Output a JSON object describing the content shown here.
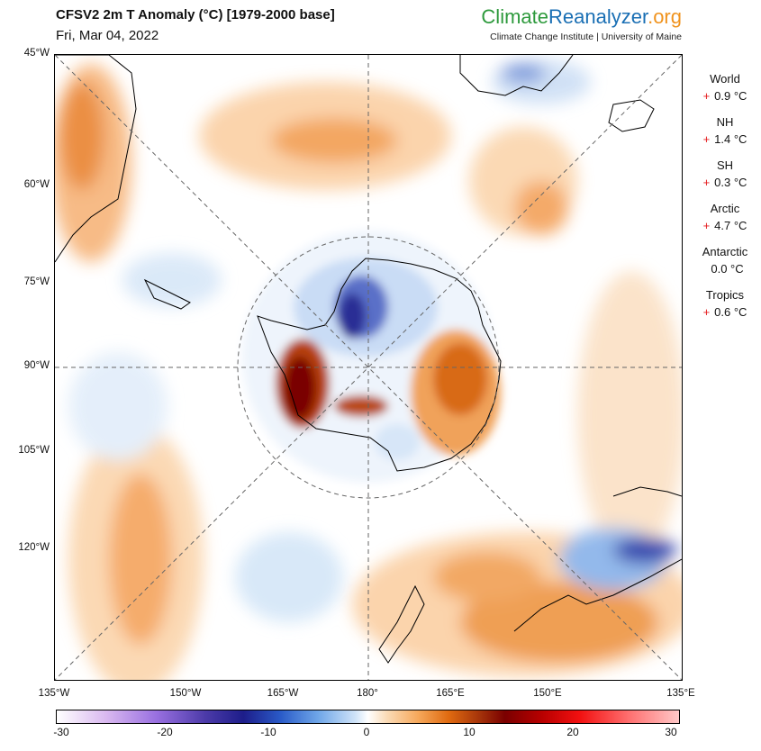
{
  "header": {
    "title": "CFSV2 2m T Anomaly (°C) [1979-2000 base]",
    "date": "Fri, Mar 04, 2022"
  },
  "brand": {
    "part1": "Climate",
    "part2": "Reanalyzer",
    "part3": ".org",
    "subtitle": "Climate Change Institute | University of Maine"
  },
  "map": {
    "lat_labels": [
      "45°W",
      "60°W",
      "75°W",
      "90°W",
      "105°W",
      "120°W"
    ],
    "lon_labels": [
      "135°W",
      "150°W",
      "165°W",
      "180°",
      "165°E",
      "150°E",
      "135°E"
    ]
  },
  "stats": [
    {
      "name": "World",
      "sign": "+",
      "value": "0.9 °C"
    },
    {
      "name": "NH",
      "sign": "+",
      "value": "1.4 °C"
    },
    {
      "name": "SH",
      "sign": "+",
      "value": "0.3 °C"
    },
    {
      "name": "Arctic",
      "sign": "+",
      "value": "4.7 °C"
    },
    {
      "name": "Antarctic",
      "sign": "",
      "value": "0.0 °C"
    },
    {
      "name": "Tropics",
      "sign": "+",
      "value": "0.6 °C"
    }
  ],
  "colorbar": {
    "ticks": [
      "-30",
      "-20",
      "-10",
      "0",
      "10",
      "20",
      "30"
    ],
    "min": -30,
    "max": 30
  }
}
